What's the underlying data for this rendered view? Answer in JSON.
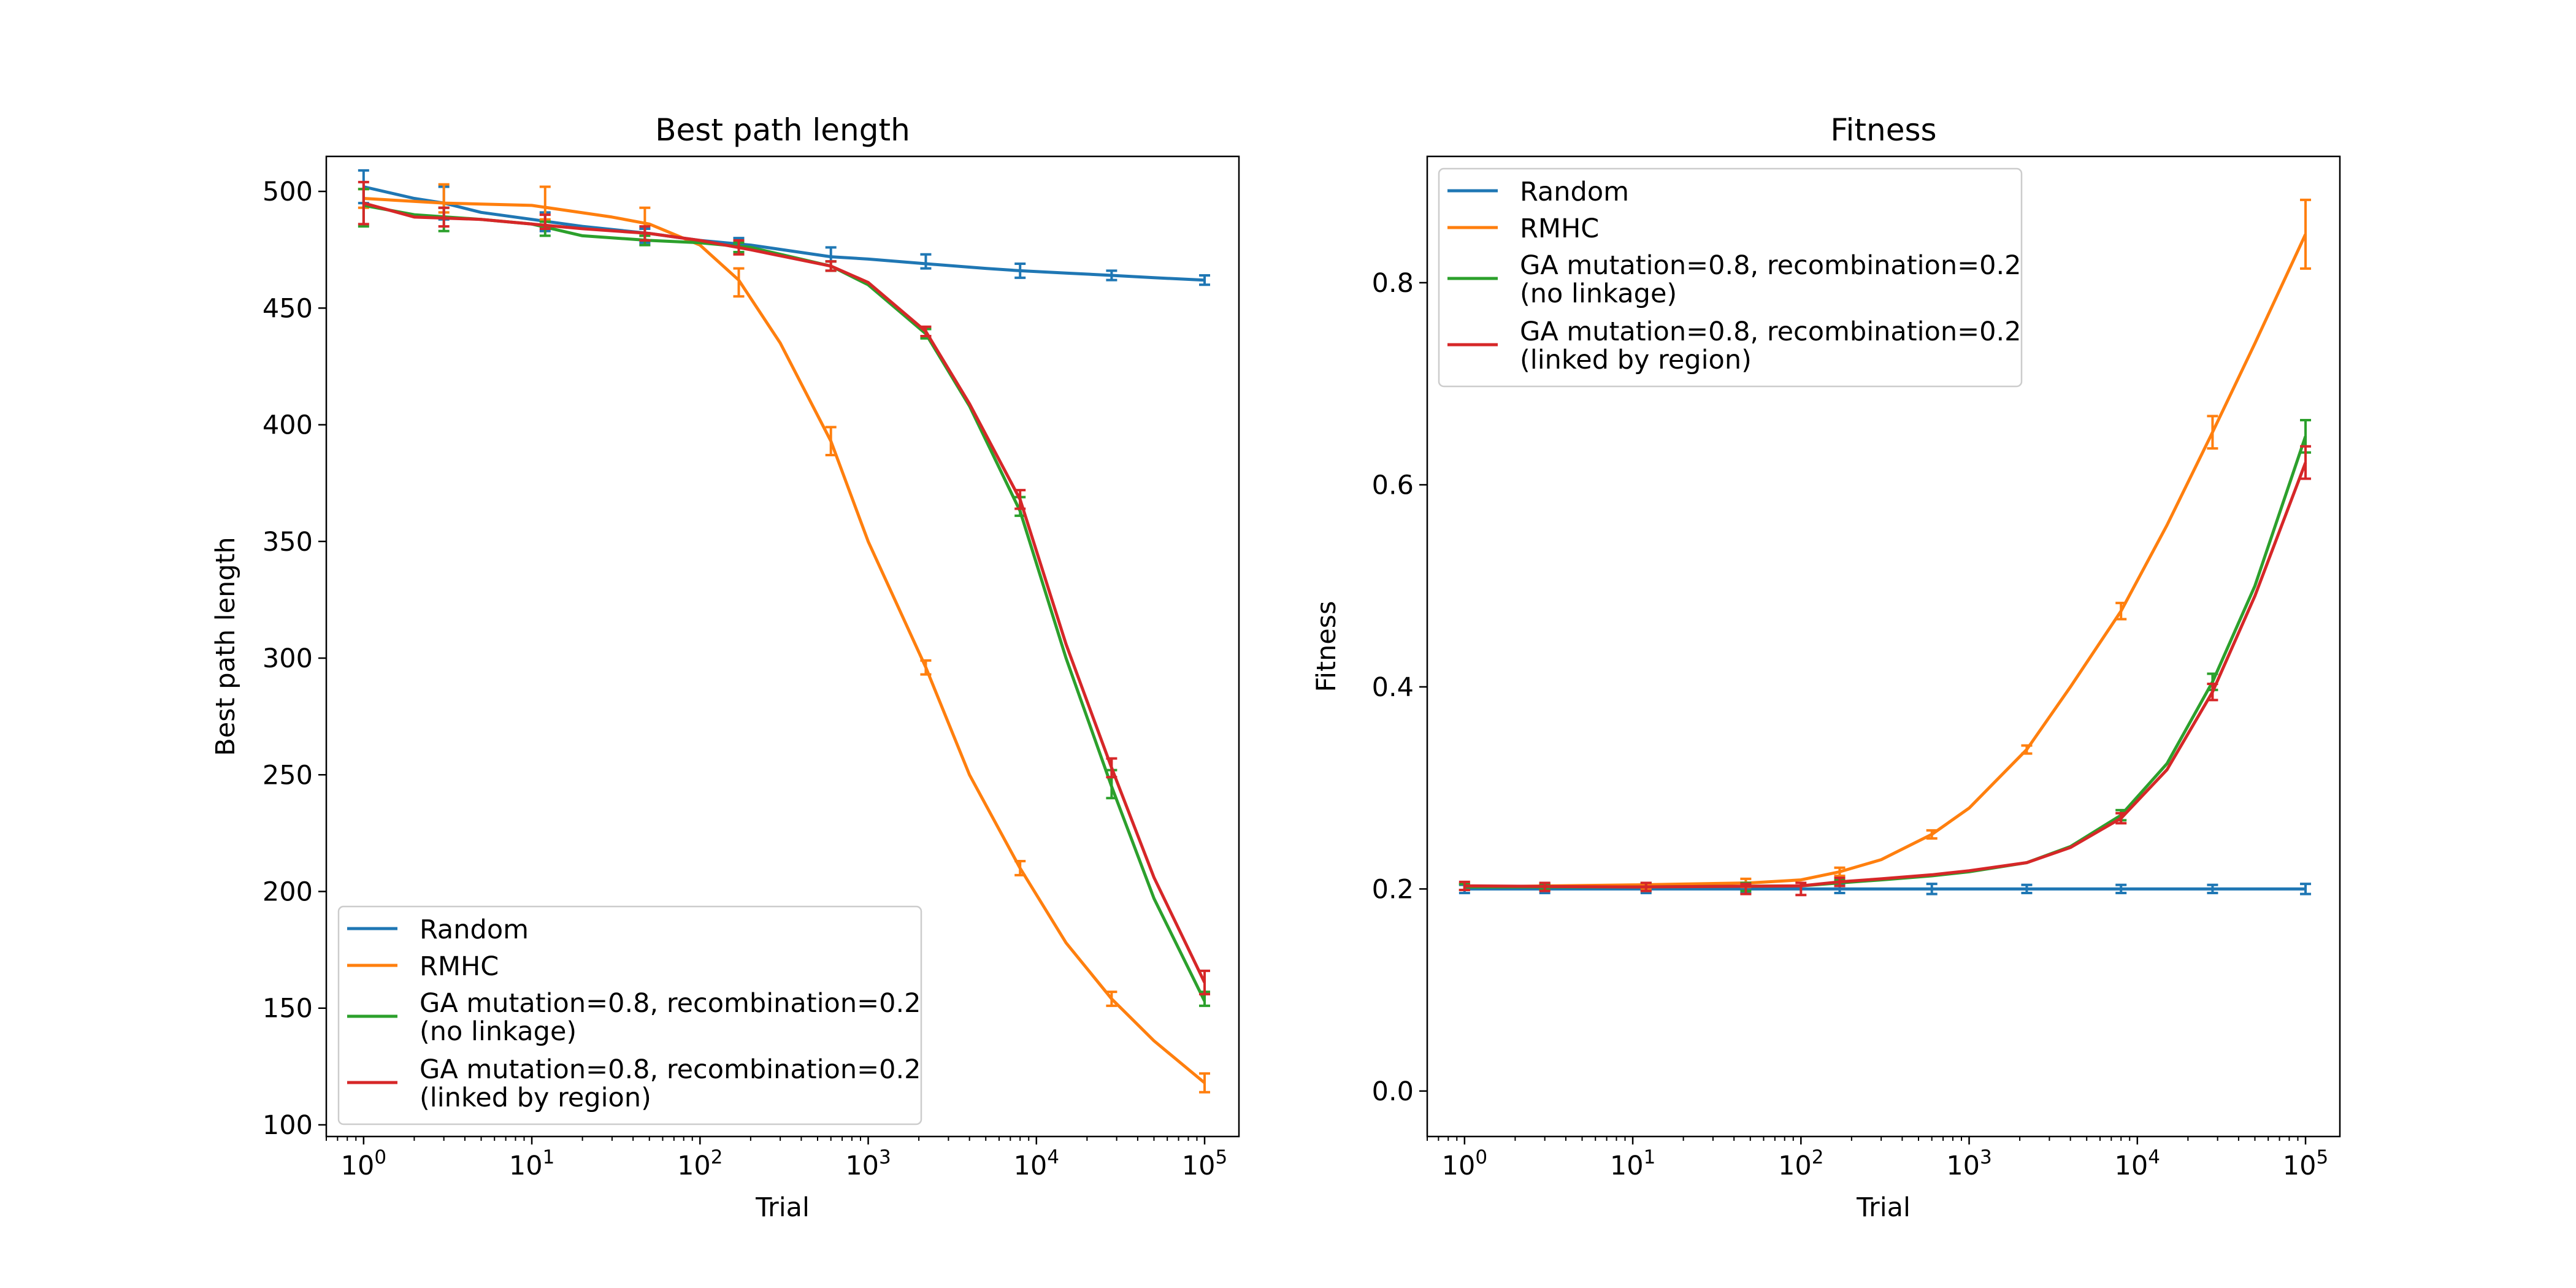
{
  "colors": {
    "Random": "#1f77b4",
    "RMHC": "#ff7f0e",
    "GA mutation=0.8, recombination=0.2\n(no linkage)": "#2ca02c",
    "GA mutation=0.8, recombination=0.2\n(linked by region)": "#d62728"
  },
  "chart_data": [
    {
      "type": "line",
      "title": "Best path length",
      "xlabel": "Trial",
      "ylabel": "Best path length",
      "xscale": "log",
      "xlim": [
        0.6,
        160000
      ],
      "ylim": [
        95,
        515
      ],
      "xticks": [
        1,
        10,
        100,
        1000,
        10000,
        100000
      ],
      "xtick_labels": [
        [
          "10",
          "0"
        ],
        [
          "10",
          "1"
        ],
        [
          "10",
          "2"
        ],
        [
          "10",
          "3"
        ],
        [
          "10",
          "4"
        ],
        [
          "10",
          "5"
        ]
      ],
      "yticks": [
        100,
        150,
        200,
        250,
        300,
        350,
        400,
        450,
        500
      ],
      "ytick_labels": [
        "100",
        "150",
        "200",
        "250",
        "300",
        "350",
        "400",
        "450",
        "500"
      ],
      "legend": "lower-left",
      "legend_entries": [
        {
          "name": "Random",
          "lines": [
            "Random"
          ]
        },
        {
          "name": "RMHC",
          "lines": [
            "RMHC"
          ]
        },
        {
          "name": "GA mutation=0.8, recombination=0.2\n(no linkage)",
          "lines": [
            "GA mutation=0.8, recombination=0.2",
            "(no linkage)"
          ]
        },
        {
          "name": "GA mutation=0.8, recombination=0.2\n(linked by region)",
          "lines": [
            "GA mutation=0.8, recombination=0.2",
            "(linked by region)"
          ]
        }
      ],
      "series": [
        {
          "name": "Random",
          "x": [
            1,
            2,
            3,
            5,
            10,
            20,
            50,
            100,
            200,
            600,
            1000,
            2200,
            5000,
            8000,
            15000,
            28000,
            50000,
            100000
          ],
          "y": [
            502,
            497,
            495,
            491,
            488,
            485,
            482,
            479,
            477,
            472,
            471,
            469,
            467,
            466,
            465,
            464,
            463,
            462
          ],
          "error_bars": [
            {
              "x": 1,
              "y": 502,
              "err": 7
            },
            {
              "x": 3,
              "y": 495,
              "err": 7
            },
            {
              "x": 12,
              "y": 487,
              "err": 4
            },
            {
              "x": 47,
              "y": 481,
              "err": 3
            },
            {
              "x": 170,
              "y": 477,
              "err": 3
            },
            {
              "x": 600,
              "y": 473,
              "err": 3
            },
            {
              "x": 2200,
              "y": 470,
              "err": 3
            },
            {
              "x": 8000,
              "y": 466,
              "err": 3
            },
            {
              "x": 28000,
              "y": 464,
              "err": 2
            },
            {
              "x": 100000,
              "y": 462,
              "err": 2
            }
          ]
        },
        {
          "name": "RMHC",
          "x": [
            1,
            3,
            10,
            30,
            50,
            100,
            170,
            300,
            600,
            1000,
            2200,
            4000,
            8000,
            15000,
            28000,
            50000,
            100000
          ],
          "y": [
            497,
            495,
            494,
            489,
            486,
            477,
            462,
            435,
            393,
            350,
            296,
            250,
            210,
            178,
            154,
            136,
            118
          ],
          "error_bars": [
            {
              "x": 1,
              "y": 497,
              "err": 4
            },
            {
              "x": 3,
              "y": 497,
              "err": 6
            },
            {
              "x": 12,
              "y": 495,
              "err": 7
            },
            {
              "x": 47,
              "y": 487,
              "err": 6
            },
            {
              "x": 170,
              "y": 461,
              "err": 6
            },
            {
              "x": 600,
              "y": 393,
              "err": 6
            },
            {
              "x": 2200,
              "y": 296,
              "err": 3
            },
            {
              "x": 8000,
              "y": 210,
              "err": 3
            },
            {
              "x": 28000,
              "y": 154,
              "err": 3
            },
            {
              "x": 100000,
              "y": 118,
              "err": 4
            }
          ]
        },
        {
          "name": "GA mutation=0.8, recombination=0.2\n(no linkage)",
          "x": [
            1,
            2,
            5,
            10,
            20,
            50,
            100,
            200,
            600,
            1000,
            2200,
            4000,
            8000,
            15000,
            28000,
            50000,
            100000
          ],
          "y": [
            494,
            490,
            488,
            486,
            481,
            479,
            478,
            476,
            468,
            460,
            439,
            408,
            363,
            300,
            245,
            197,
            153
          ],
          "error_bars": [
            {
              "x": 1,
              "y": 493,
              "err": 8
            },
            {
              "x": 3,
              "y": 488,
              "err": 5
            },
            {
              "x": 12,
              "y": 484,
              "err": 3
            },
            {
              "x": 47,
              "y": 479,
              "err": 2
            },
            {
              "x": 170,
              "y": 476,
              "err": 2
            },
            {
              "x": 600,
              "y": 468,
              "err": 2
            },
            {
              "x": 2200,
              "y": 439,
              "err": 2
            },
            {
              "x": 8000,
              "y": 365,
              "err": 4
            },
            {
              "x": 28000,
              "y": 246,
              "err": 6
            },
            {
              "x": 100000,
              "y": 154,
              "err": 3
            }
          ]
        },
        {
          "name": "GA mutation=0.8, recombination=0.2\n(linked by region)",
          "x": [
            1,
            2,
            5,
            10,
            20,
            50,
            100,
            200,
            600,
            1000,
            2200,
            4000,
            8000,
            15000,
            28000,
            50000,
            100000
          ],
          "y": [
            495,
            489,
            488,
            486,
            484,
            482,
            479,
            475,
            468,
            461,
            440,
            409,
            368,
            306,
            253,
            206,
            161
          ],
          "error_bars": [
            {
              "x": 1,
              "y": 495,
              "err": 9
            },
            {
              "x": 3,
              "y": 489,
              "err": 4
            },
            {
              "x": 12,
              "y": 487,
              "err": 3
            },
            {
              "x": 47,
              "y": 482,
              "err": 3
            },
            {
              "x": 170,
              "y": 476,
              "err": 3
            },
            {
              "x": 600,
              "y": 468,
              "err": 2
            },
            {
              "x": 2200,
              "y": 440,
              "err": 2
            },
            {
              "x": 8000,
              "y": 368,
              "err": 4
            },
            {
              "x": 28000,
              "y": 253,
              "err": 4
            },
            {
              "x": 100000,
              "y": 161,
              "err": 5
            }
          ]
        }
      ]
    },
    {
      "type": "line",
      "title": "Fitness",
      "xlabel": "Trial",
      "ylabel": "Fitness",
      "xscale": "log",
      "xlim": [
        0.6,
        160000
      ],
      "ylim": [
        -0.045,
        0.925
      ],
      "xticks": [
        1,
        10,
        100,
        1000,
        10000,
        100000
      ],
      "xtick_labels": [
        [
          "10",
          "0"
        ],
        [
          "10",
          "1"
        ],
        [
          "10",
          "2"
        ],
        [
          "10",
          "3"
        ],
        [
          "10",
          "4"
        ],
        [
          "10",
          "5"
        ]
      ],
      "yticks": [
        0.0,
        0.2,
        0.4,
        0.6,
        0.8
      ],
      "ytick_labels": [
        "0.0",
        "0.2",
        "0.4",
        "0.6",
        "0.8"
      ],
      "legend": "upper-left",
      "legend_entries": [
        {
          "name": "Random",
          "lines": [
            "Random"
          ]
        },
        {
          "name": "RMHC",
          "lines": [
            "RMHC"
          ]
        },
        {
          "name": "GA mutation=0.8, recombination=0.2\n(no linkage)",
          "lines": [
            "GA mutation=0.8, recombination=0.2",
            "(no linkage)"
          ]
        },
        {
          "name": "GA mutation=0.8, recombination=0.2\n(linked by region)",
          "lines": [
            "GA mutation=0.8, recombination=0.2",
            "(linked by region)"
          ]
        }
      ],
      "series": [
        {
          "name": "Random",
          "x": [
            1,
            10,
            100,
            1000,
            10000,
            100000
          ],
          "y": [
            0.2,
            0.2,
            0.2,
            0.2,
            0.2,
            0.2
          ],
          "error_bars": [
            {
              "x": 1,
              "y": 0.2,
              "err": 0.004
            },
            {
              "x": 3,
              "y": 0.2,
              "err": 0.004
            },
            {
              "x": 12,
              "y": 0.2,
              "err": 0.004
            },
            {
              "x": 47,
              "y": 0.2,
              "err": 0.004
            },
            {
              "x": 170,
              "y": 0.2,
              "err": 0.004
            },
            {
              "x": 600,
              "y": 0.2,
              "err": 0.005
            },
            {
              "x": 2200,
              "y": 0.2,
              "err": 0.004
            },
            {
              "x": 8000,
              "y": 0.2,
              "err": 0.004
            },
            {
              "x": 28000,
              "y": 0.2,
              "err": 0.004
            },
            {
              "x": 100000,
              "y": 0.2,
              "err": 0.005
            }
          ]
        },
        {
          "name": "RMHC",
          "x": [
            1,
            10,
            50,
            100,
            170,
            300,
            600,
            1000,
            2200,
            4000,
            8000,
            15000,
            28000,
            50000,
            100000
          ],
          "y": [
            0.202,
            0.204,
            0.206,
            0.209,
            0.217,
            0.229,
            0.254,
            0.28,
            0.338,
            0.4,
            0.475,
            0.56,
            0.652,
            0.74,
            0.848
          ],
          "error_bars": [
            {
              "x": 1,
              "y": 0.202,
              "err": 0.003
            },
            {
              "x": 3,
              "y": 0.202,
              "err": 0.003
            },
            {
              "x": 12,
              "y": 0.203,
              "err": 0.003
            },
            {
              "x": 47,
              "y": 0.206,
              "err": 0.004
            },
            {
              "x": 170,
              "y": 0.217,
              "err": 0.004
            },
            {
              "x": 600,
              "y": 0.254,
              "err": 0.004
            },
            {
              "x": 2200,
              "y": 0.338,
              "err": 0.004
            },
            {
              "x": 8000,
              "y": 0.475,
              "err": 0.008
            },
            {
              "x": 28000,
              "y": 0.652,
              "err": 0.016
            },
            {
              "x": 100000,
              "y": 0.848,
              "err": 0.034
            }
          ]
        },
        {
          "name": "GA mutation=0.8, recombination=0.2\n(no linkage)",
          "x": [
            1,
            10,
            100,
            170,
            300,
            600,
            1000,
            2200,
            4000,
            8000,
            15000,
            28000,
            50000,
            100000
          ],
          "y": [
            0.202,
            0.202,
            0.203,
            0.206,
            0.209,
            0.213,
            0.217,
            0.226,
            0.242,
            0.273,
            0.324,
            0.405,
            0.5,
            0.648
          ],
          "error_bars": [
            {
              "x": 1,
              "y": 0.202,
              "err": 0.003
            },
            {
              "x": 3,
              "y": 0.202,
              "err": 0.003
            },
            {
              "x": 12,
              "y": 0.202,
              "err": 0.004
            },
            {
              "x": 47,
              "y": 0.202,
              "err": 0.004
            },
            {
              "x": 170,
              "y": 0.206,
              "err": 0.003
            },
            {
              "x": 8000,
              "y": 0.273,
              "err": 0.005
            },
            {
              "x": 28000,
              "y": 0.405,
              "err": 0.008
            },
            {
              "x": 100000,
              "y": 0.648,
              "err": 0.016
            }
          ]
        },
        {
          "name": "GA mutation=0.8, recombination=0.2\n(linked by region)",
          "x": [
            1,
            10,
            100,
            170,
            300,
            600,
            1000,
            2200,
            4000,
            8000,
            15000,
            28000,
            50000,
            100000
          ],
          "y": [
            0.203,
            0.202,
            0.203,
            0.207,
            0.21,
            0.214,
            0.218,
            0.226,
            0.241,
            0.27,
            0.318,
            0.395,
            0.49,
            0.622
          ],
          "error_bars": [
            {
              "x": 1,
              "y": 0.203,
              "err": 0.004
            },
            {
              "x": 3,
              "y": 0.202,
              "err": 0.004
            },
            {
              "x": 12,
              "y": 0.202,
              "err": 0.004
            },
            {
              "x": 47,
              "y": 0.2,
              "err": 0.005
            },
            {
              "x": 100,
              "y": 0.2,
              "err": 0.006
            },
            {
              "x": 170,
              "y": 0.207,
              "err": 0.004
            },
            {
              "x": 8000,
              "y": 0.27,
              "err": 0.005
            },
            {
              "x": 28000,
              "y": 0.395,
              "err": 0.008
            },
            {
              "x": 100000,
              "y": 0.622,
              "err": 0.016
            }
          ]
        }
      ]
    }
  ]
}
